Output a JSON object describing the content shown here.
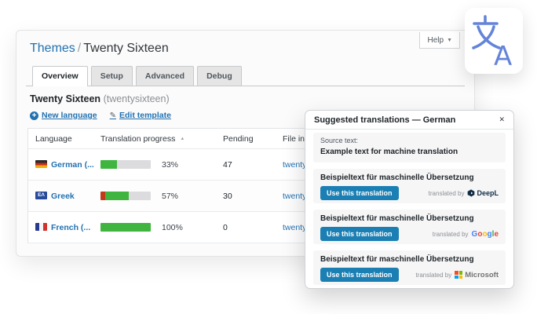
{
  "header": {
    "breadcrumb_link": "Themes",
    "breadcrumb_separator": "/",
    "breadcrumb_current": "Twenty Sixteen",
    "help_label": "Help",
    "help_caret": "▼"
  },
  "tabs": [
    {
      "label": "Overview",
      "active": true
    },
    {
      "label": "Setup",
      "active": false
    },
    {
      "label": "Advanced",
      "active": false
    },
    {
      "label": "Debug",
      "active": false
    }
  ],
  "theme": {
    "title": "Twenty Sixteen",
    "slug": "(twentysixteen)"
  },
  "actions": {
    "new_language": "New language",
    "edit_template": "Edit template",
    "plus_glyph": "+",
    "pencil_glyph": "✎"
  },
  "table": {
    "headers": {
      "language": "Language",
      "progress": "Translation progress",
      "sort_glyph": "▲",
      "pending": "Pending",
      "file_info": "File inf"
    },
    "rows": [
      {
        "language": "German (...",
        "flag": "de",
        "flag_label": "",
        "percent_label": "33%",
        "pending": "47",
        "file": "twentys",
        "bar": {
          "fuzzy_pct": 0,
          "done_pct": 33
        }
      },
      {
        "language": "Greek",
        "flag": "el",
        "flag_label": "ΕΛ",
        "percent_label": "57%",
        "pending": "30",
        "file": "twentys",
        "bar": {
          "fuzzy_pct": 9,
          "done_pct": 48
        }
      },
      {
        "language": "French (...",
        "flag": "fr",
        "flag_label": "",
        "percent_label": "100%",
        "pending": "0",
        "file": "twentys",
        "bar": {
          "fuzzy_pct": 0,
          "done_pct": 100
        }
      }
    ]
  },
  "panel": {
    "title": "Suggested translations — German",
    "close_glyph": "✕",
    "source_label": "Source text:",
    "source_text": "Example text for machine translation",
    "attribution_label": "translated by",
    "suggestions": [
      {
        "text": "Beispieltext für maschinelle Übersetzung",
        "button_label": "Use this translation",
        "provider": "DeepL"
      },
      {
        "text": "Beispieltext für maschinelle Übersetzung",
        "button_label": "Use this translation",
        "provider": "Google"
      },
      {
        "text": "Beispieltext für maschinelle Übersetzung",
        "button_label": "Use this translation",
        "provider": "Microsoft"
      }
    ],
    "deepl_label": "DeepL",
    "microsoft_label": "Microsoft",
    "google_letters": [
      "G",
      "o",
      "o",
      "g",
      "l",
      "e"
    ]
  },
  "colors": {
    "accent_blue": "#2271b1",
    "button_blue": "#1b7fb3",
    "progress_green": "#3fb53f",
    "progress_fuzzy_red": "#c23a1c",
    "track_gray": "#dcdcde",
    "logo_blue": "#6384d9",
    "deepl_navy": "#0f2b46",
    "google_colors": [
      "#4285F4",
      "#EA4335",
      "#FBBC05",
      "#4285F4",
      "#34A853",
      "#EA4335"
    ],
    "microsoft_squares": [
      "#f25022",
      "#7fba00",
      "#00a4ef",
      "#ffb900"
    ]
  }
}
